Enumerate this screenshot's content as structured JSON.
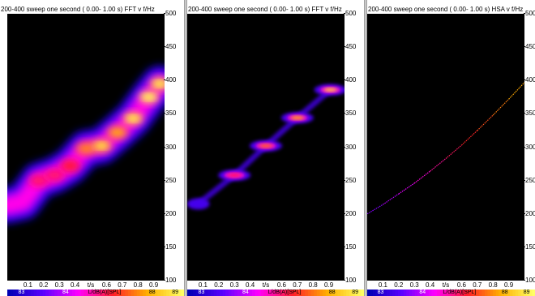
{
  "panels": [
    {
      "title": "200-400 sweep one second ( 0.00- 1.00 s) FFT v f/Hz",
      "type": "fft-blur",
      "x_ticks": [
        "0.1",
        "0.2",
        "0.3",
        "0.4",
        "t/s",
        "0.6",
        "0.7",
        "0.8",
        "0.9"
      ],
      "y_ticks": [
        "500",
        "450",
        "400",
        "350",
        "300",
        "250",
        "200",
        "150",
        "100"
      ],
      "colorbar_labels": [
        "83",
        "84",
        "L/dB(A)[SPL]",
        "88",
        "89"
      ]
    },
    {
      "title": "200-400 sweep one second ( 0.00- 1.00 s) FFT v f/Hz",
      "type": "fft-sharp",
      "x_ticks": [
        "0.1",
        "0.2",
        "0.3",
        "0.4",
        "t/s",
        "0.6",
        "0.7",
        "0.8",
        "0.9"
      ],
      "y_ticks": [
        "500",
        "450",
        "400",
        "350",
        "300",
        "250",
        "200",
        "150",
        "100"
      ],
      "colorbar_labels": [
        "83",
        "84",
        "L/dB(A)[SPL]",
        "88",
        "89"
      ]
    },
    {
      "title": "200-400 sweep one second ( 0.00- 1.00 s) HSA v f/Hz",
      "type": "hsa-line",
      "x_ticks": [
        "0.1",
        "0.2",
        "0.3",
        "0.4",
        "t/s",
        "0.6",
        "0.7",
        "0.8",
        "0.9"
      ],
      "y_ticks": [
        "500",
        "450",
        "400",
        "350",
        "300",
        "250",
        "200",
        "150",
        "100"
      ],
      "colorbar_labels": [
        "83",
        "84",
        "L/dB(A)[SPL]",
        "88",
        "89"
      ]
    }
  ],
  "colors": {
    "plot_background": "#000000",
    "colormap": [
      "#0000b4",
      "#5a00ff",
      "#ff00ff",
      "#ff1e28",
      "#ffb000",
      "#ffff64"
    ]
  },
  "chart_data": [
    {
      "type": "heatmap",
      "title": "200-400 sweep one second ( 0.00- 1.00 s) FFT v f/Hz",
      "xlabel": "t/s",
      "ylabel": "f/Hz",
      "xlim": [
        0,
        1
      ],
      "ylim": [
        100,
        500
      ],
      "colorbar": {
        "label": "L/dB(A)[SPL]",
        "range": [
          83,
          89
        ]
      },
      "ridge": [
        {
          "t": 0.0,
          "f": 213,
          "level": 0.3
        },
        {
          "t": 0.1,
          "f": 218,
          "level": 0.35
        },
        {
          "t": 0.2,
          "f": 250,
          "level": 0.55
        },
        {
          "t": 0.3,
          "f": 258,
          "level": 0.55
        },
        {
          "t": 0.4,
          "f": 272,
          "level": 0.6
        },
        {
          "t": 0.5,
          "f": 298,
          "level": 0.75
        },
        {
          "t": 0.6,
          "f": 302,
          "level": 0.85
        },
        {
          "t": 0.7,
          "f": 322,
          "level": 0.8
        },
        {
          "t": 0.8,
          "f": 343,
          "level": 0.9
        },
        {
          "t": 0.9,
          "f": 375,
          "level": 0.95
        },
        {
          "t": 0.97,
          "f": 395,
          "level": 0.9
        }
      ]
    },
    {
      "type": "heatmap",
      "title": "200-400 sweep one second ( 0.00- 1.00 s) FFT v f/Hz",
      "xlabel": "t/s",
      "ylabel": "f/Hz",
      "xlim": [
        0,
        1
      ],
      "ylim": [
        100,
        500
      ],
      "colorbar": {
        "label": "L/dB(A)[SPL]",
        "range": [
          83,
          89
        ]
      },
      "blobs": [
        {
          "t": 0.07,
          "f": 215,
          "level": 0.15
        },
        {
          "t": 0.3,
          "f": 258,
          "level": 0.55
        },
        {
          "t": 0.5,
          "f": 302,
          "level": 0.7
        },
        {
          "t": 0.7,
          "f": 344,
          "level": 0.8
        },
        {
          "t": 0.91,
          "f": 386,
          "level": 0.9
        }
      ]
    },
    {
      "type": "line",
      "title": "200-400 sweep one second ( 0.00- 1.00 s) HSA v f/Hz",
      "xlabel": "t/s",
      "ylabel": "f/Hz",
      "xlim": [
        0,
        1
      ],
      "ylim": [
        100,
        500
      ],
      "series": [
        {
          "x": [
            0.0,
            0.1,
            0.2,
            0.3,
            0.4,
            0.5,
            0.6,
            0.7,
            0.8,
            0.9,
            1.0
          ],
          "values": [
            200,
            214,
            230,
            246,
            264,
            283,
            303,
            325,
            348,
            372,
            397
          ]
        }
      ]
    }
  ]
}
